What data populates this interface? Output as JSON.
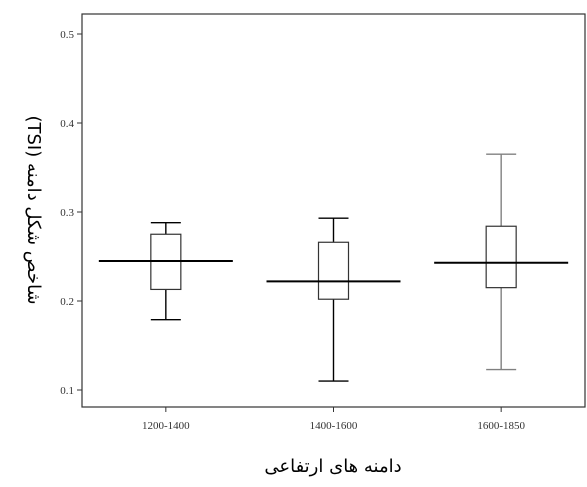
{
  "chart_data": {
    "type": "boxplot",
    "title": "",
    "xlabel": "دامنه های ارتفاعی",
    "ylabel": "شاخص شکل دامنه (TSI)",
    "ylim": [
      0.08,
      0.52
    ],
    "grid": false,
    "yticks": [
      "0.1",
      "0.2",
      "0.3",
      "0.4",
      "0.5"
    ],
    "categories": [
      "1200-1400",
      "1400-1600",
      "1600-1850"
    ],
    "boxes": [
      {
        "category": "1200-1400",
        "min": 0.179,
        "q1": 0.213,
        "median": 0.245,
        "q3": 0.275,
        "max": 0.288,
        "whisker_color": "#000000"
      },
      {
        "category": "1400-1600",
        "min": 0.11,
        "q1": 0.202,
        "median": 0.222,
        "q3": 0.266,
        "max": 0.293,
        "whisker_color": "#000000"
      },
      {
        "category": "1600-1850",
        "min": 0.123,
        "q1": 0.215,
        "median": 0.243,
        "q3": 0.284,
        "max": 0.365,
        "whisker_color": "#808080"
      }
    ]
  }
}
